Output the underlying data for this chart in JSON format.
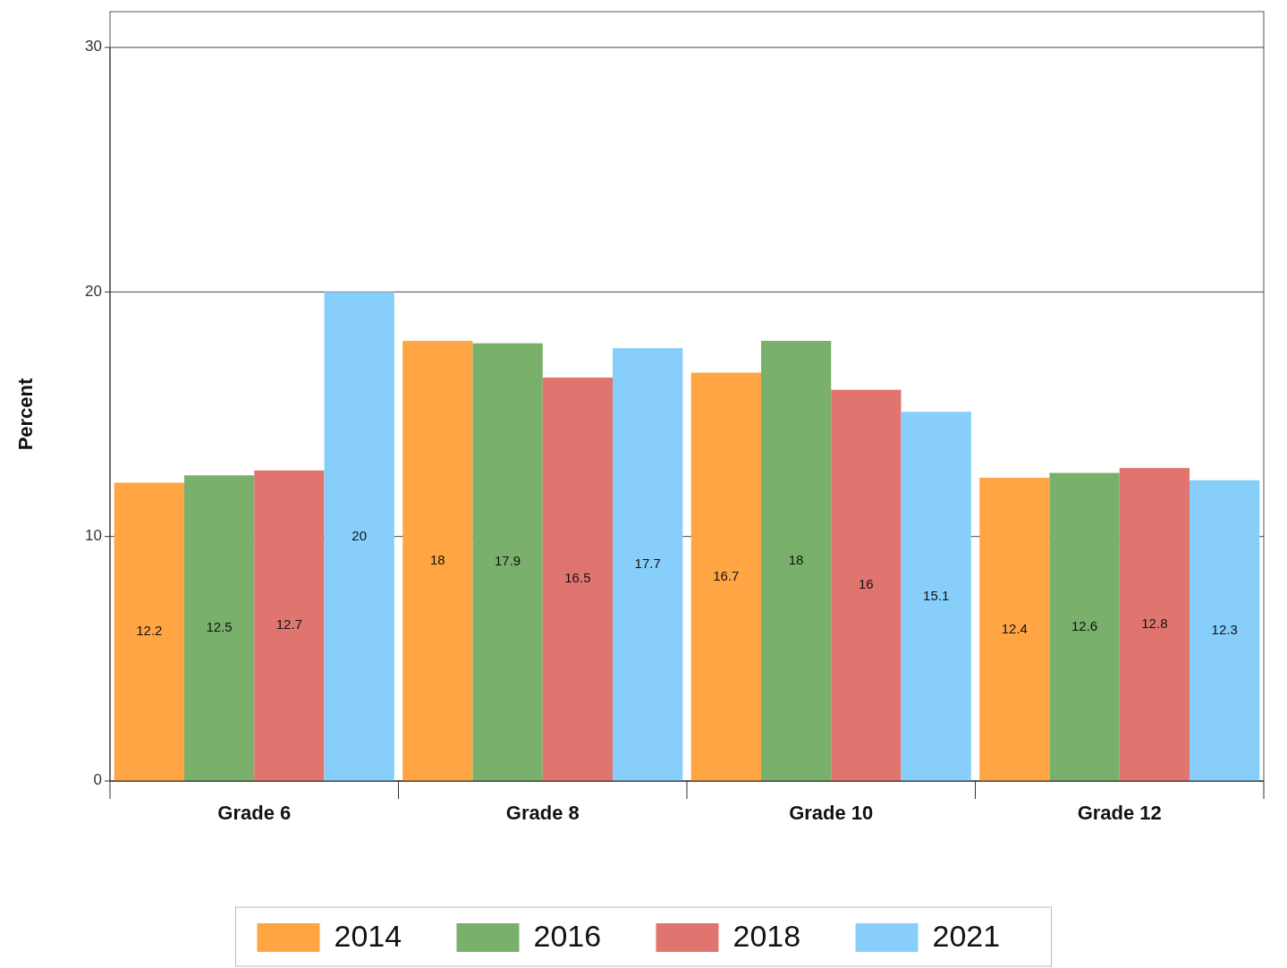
{
  "chart_data": {
    "type": "bar",
    "ylabel": "Percent",
    "categories": [
      "Grade 6",
      "Grade 8",
      "Grade 10",
      "Grade 12"
    ],
    "series": [
      {
        "name": "2014",
        "color": "#ffa544",
        "values": [
          12.2,
          18,
          16.7,
          12.4
        ]
      },
      {
        "name": "2016",
        "color": "#79b06b",
        "values": [
          12.5,
          17.9,
          18,
          12.6
        ]
      },
      {
        "name": "2018",
        "color": "#e07570",
        "values": [
          12.7,
          16.5,
          16,
          12.8
        ]
      },
      {
        "name": "2021",
        "color": "#87cefa",
        "values": [
          20,
          17.7,
          15.1,
          12.3
        ]
      }
    ],
    "ylim": [
      0,
      30
    ],
    "yticks": [
      0,
      10,
      20,
      30
    ],
    "grid": "y",
    "legend": "bottom",
    "data_labels": true
  }
}
